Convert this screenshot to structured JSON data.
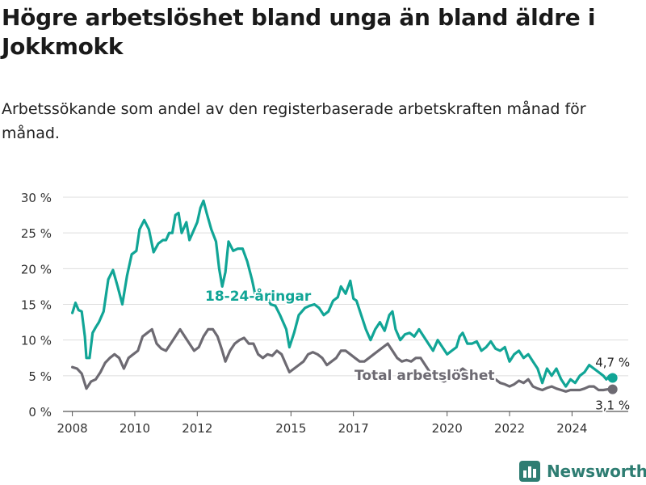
{
  "title": "Högre arbetslöshet bland unga än bland äldre i Jokkmokk",
  "subtitle": "Arbetssökande som andel av den registerbaserade arbetskraften månad för månad.",
  "brand": {
    "name": "Newsworthy",
    "icon": "newsworthy-logo-icon",
    "color": "#2e7d72"
  },
  "chart_data": {
    "type": "line",
    "title": "Högre arbetslöshet bland unga än bland äldre i Jokkmokk",
    "subtitle": "Arbetssökande som andel av den registerbaserade arbetskraften månad för månad.",
    "xlabel": "",
    "ylabel": "",
    "xlim": [
      2007.7,
      2025.8
    ],
    "ylim": [
      0,
      30
    ],
    "x_ticks": [
      2008,
      2010,
      2012,
      2015,
      2017,
      2020,
      2022,
      2024
    ],
    "y_ticks": [
      {
        "value": 0,
        "label": "0 %"
      },
      {
        "value": 5,
        "label": "5 %"
      },
      {
        "value": 10,
        "label": "10 %"
      },
      {
        "value": 15,
        "label": "15 %"
      },
      {
        "value": 20,
        "label": "20 %"
      },
      {
        "value": 25,
        "label": "25 %"
      },
      {
        "value": 30,
        "label": "30 %"
      }
    ],
    "grid": true,
    "series": [
      {
        "name": "18-24-åringar",
        "color": "#11a596",
        "end_label": "4,7 %",
        "points": [
          [
            2008.0,
            13.8
          ],
          [
            2008.1,
            15.2
          ],
          [
            2008.2,
            14.2
          ],
          [
            2008.3,
            14.0
          ],
          [
            2008.4,
            10.5
          ],
          [
            2008.45,
            7.5
          ],
          [
            2008.55,
            7.5
          ],
          [
            2008.65,
            11.0
          ],
          [
            2008.75,
            11.8
          ],
          [
            2008.85,
            12.5
          ],
          [
            2009.0,
            14.0
          ],
          [
            2009.15,
            18.5
          ],
          [
            2009.3,
            19.8
          ],
          [
            2009.45,
            17.5
          ],
          [
            2009.6,
            15.0
          ],
          [
            2009.75,
            19.0
          ],
          [
            2009.9,
            22.0
          ],
          [
            2010.05,
            22.5
          ],
          [
            2010.15,
            25.5
          ],
          [
            2010.3,
            26.8
          ],
          [
            2010.45,
            25.5
          ],
          [
            2010.6,
            22.3
          ],
          [
            2010.75,
            23.5
          ],
          [
            2010.9,
            24.0
          ],
          [
            2011.0,
            24.0
          ],
          [
            2011.1,
            25.0
          ],
          [
            2011.2,
            25.0
          ],
          [
            2011.3,
            27.5
          ],
          [
            2011.4,
            27.8
          ],
          [
            2011.5,
            25.0
          ],
          [
            2011.65,
            26.5
          ],
          [
            2011.75,
            24.0
          ],
          [
            2011.9,
            25.5
          ],
          [
            2012.0,
            26.5
          ],
          [
            2012.1,
            28.5
          ],
          [
            2012.2,
            29.5
          ],
          [
            2012.3,
            27.8
          ],
          [
            2012.45,
            25.5
          ],
          [
            2012.6,
            23.8
          ],
          [
            2012.7,
            20.0
          ],
          [
            2012.8,
            17.5
          ],
          [
            2012.9,
            19.5
          ],
          [
            2013.0,
            23.8
          ],
          [
            2013.15,
            22.5
          ],
          [
            2013.3,
            22.8
          ],
          [
            2013.45,
            22.8
          ],
          [
            2013.6,
            21.0
          ],
          [
            2013.75,
            18.5
          ],
          [
            2013.85,
            16.5
          ],
          [
            2013.95,
            15.5
          ],
          [
            2014.05,
            16.3
          ],
          [
            2014.2,
            16.3
          ],
          [
            2014.35,
            15.0
          ],
          [
            2014.5,
            14.8
          ],
          [
            2014.65,
            13.5
          ],
          [
            2014.85,
            11.5
          ],
          [
            2014.95,
            9.0
          ],
          [
            2015.1,
            11.0
          ],
          [
            2015.25,
            13.5
          ],
          [
            2015.45,
            14.5
          ],
          [
            2015.6,
            14.8
          ],
          [
            2015.75,
            15.0
          ],
          [
            2015.9,
            14.5
          ],
          [
            2016.05,
            13.5
          ],
          [
            2016.2,
            14.0
          ],
          [
            2016.35,
            15.5
          ],
          [
            2016.5,
            16.0
          ],
          [
            2016.6,
            17.5
          ],
          [
            2016.75,
            16.5
          ],
          [
            2016.9,
            18.3
          ],
          [
            2017.0,
            15.8
          ],
          [
            2017.1,
            15.5
          ],
          [
            2017.25,
            13.5
          ],
          [
            2017.4,
            11.5
          ],
          [
            2017.55,
            10.0
          ],
          [
            2017.7,
            11.5
          ],
          [
            2017.85,
            12.5
          ],
          [
            2018.0,
            11.3
          ],
          [
            2018.15,
            13.5
          ],
          [
            2018.25,
            14.0
          ],
          [
            2018.35,
            11.5
          ],
          [
            2018.5,
            10.0
          ],
          [
            2018.65,
            10.8
          ],
          [
            2018.8,
            11.0
          ],
          [
            2018.95,
            10.5
          ],
          [
            2019.1,
            11.5
          ],
          [
            2019.25,
            10.5
          ],
          [
            2019.4,
            9.5
          ],
          [
            2019.55,
            8.5
          ],
          [
            2019.7,
            10.0
          ],
          [
            2019.85,
            9.0
          ],
          [
            2020.0,
            8.0
          ],
          [
            2020.15,
            8.5
          ],
          [
            2020.3,
            9.0
          ],
          [
            2020.4,
            10.5
          ],
          [
            2020.5,
            11.0
          ],
          [
            2020.65,
            9.5
          ],
          [
            2020.8,
            9.5
          ],
          [
            2020.95,
            9.8
          ],
          [
            2021.1,
            8.5
          ],
          [
            2021.25,
            9.0
          ],
          [
            2021.4,
            9.8
          ],
          [
            2021.55,
            8.8
          ],
          [
            2021.7,
            8.5
          ],
          [
            2021.85,
            9.0
          ],
          [
            2022.0,
            7.0
          ],
          [
            2022.15,
            8.0
          ],
          [
            2022.3,
            8.5
          ],
          [
            2022.45,
            7.5
          ],
          [
            2022.6,
            8.0
          ],
          [
            2022.75,
            7.0
          ],
          [
            2022.9,
            6.0
          ],
          [
            2023.05,
            4.0
          ],
          [
            2023.2,
            6.0
          ],
          [
            2023.35,
            5.0
          ],
          [
            2023.5,
            6.0
          ],
          [
            2023.65,
            4.5
          ],
          [
            2023.8,
            3.5
          ],
          [
            2023.95,
            4.5
          ],
          [
            2024.1,
            4.0
          ],
          [
            2024.25,
            5.0
          ],
          [
            2024.4,
            5.5
          ],
          [
            2024.55,
            6.5
          ],
          [
            2024.7,
            6.0
          ],
          [
            2024.85,
            5.5
          ],
          [
            2025.0,
            5.0
          ],
          [
            2025.1,
            4.5
          ],
          [
            2025.2,
            5.0
          ],
          [
            2025.3,
            4.7
          ]
        ]
      },
      {
        "name": "Total arbetslöshet",
        "color": "#6d6a72",
        "end_label": "3,1 %",
        "points": [
          [
            2008.0,
            6.2
          ],
          [
            2008.15,
            6.0
          ],
          [
            2008.3,
            5.3
          ],
          [
            2008.45,
            3.2
          ],
          [
            2008.6,
            4.2
          ],
          [
            2008.75,
            4.5
          ],
          [
            2008.9,
            5.5
          ],
          [
            2009.05,
            6.8
          ],
          [
            2009.2,
            7.5
          ],
          [
            2009.35,
            8.0
          ],
          [
            2009.5,
            7.5
          ],
          [
            2009.65,
            6.0
          ],
          [
            2009.8,
            7.5
          ],
          [
            2009.95,
            8.0
          ],
          [
            2010.1,
            8.5
          ],
          [
            2010.25,
            10.5
          ],
          [
            2010.4,
            11.0
          ],
          [
            2010.55,
            11.5
          ],
          [
            2010.7,
            9.5
          ],
          [
            2010.85,
            8.8
          ],
          [
            2011.0,
            8.5
          ],
          [
            2011.15,
            9.5
          ],
          [
            2011.3,
            10.5
          ],
          [
            2011.45,
            11.5
          ],
          [
            2011.6,
            10.5
          ],
          [
            2011.75,
            9.5
          ],
          [
            2011.9,
            8.5
          ],
          [
            2012.05,
            9.0
          ],
          [
            2012.2,
            10.5
          ],
          [
            2012.35,
            11.5
          ],
          [
            2012.5,
            11.5
          ],
          [
            2012.65,
            10.5
          ],
          [
            2012.8,
            8.5
          ],
          [
            2012.9,
            7.0
          ],
          [
            2013.05,
            8.5
          ],
          [
            2013.2,
            9.5
          ],
          [
            2013.35,
            10.0
          ],
          [
            2013.5,
            10.3
          ],
          [
            2013.65,
            9.5
          ],
          [
            2013.8,
            9.5
          ],
          [
            2013.95,
            8.0
          ],
          [
            2014.1,
            7.5
          ],
          [
            2014.25,
            8.0
          ],
          [
            2014.4,
            7.8
          ],
          [
            2014.55,
            8.5
          ],
          [
            2014.7,
            8.0
          ],
          [
            2014.85,
            6.5
          ],
          [
            2014.95,
            5.5
          ],
          [
            2015.1,
            6.0
          ],
          [
            2015.25,
            6.5
          ],
          [
            2015.4,
            7.0
          ],
          [
            2015.55,
            8.0
          ],
          [
            2015.7,
            8.3
          ],
          [
            2015.85,
            8.0
          ],
          [
            2016.0,
            7.5
          ],
          [
            2016.15,
            6.5
          ],
          [
            2016.3,
            7.0
          ],
          [
            2016.45,
            7.5
          ],
          [
            2016.6,
            8.5
          ],
          [
            2016.75,
            8.5
          ],
          [
            2016.9,
            8.0
          ],
          [
            2017.05,
            7.5
          ],
          [
            2017.2,
            7.0
          ],
          [
            2017.35,
            7.0
          ],
          [
            2017.5,
            7.5
          ],
          [
            2017.65,
            8.0
          ],
          [
            2017.8,
            8.5
          ],
          [
            2017.95,
            9.0
          ],
          [
            2018.1,
            9.5
          ],
          [
            2018.25,
            8.5
          ],
          [
            2018.4,
            7.5
          ],
          [
            2018.55,
            7.0
          ],
          [
            2018.7,
            7.2
          ],
          [
            2018.85,
            7.0
          ],
          [
            2019.0,
            7.5
          ],
          [
            2019.15,
            7.5
          ],
          [
            2019.3,
            6.5
          ],
          [
            2019.45,
            5.5
          ],
          [
            2019.6,
            5.0
          ],
          [
            2019.75,
            4.5
          ],
          [
            2019.9,
            4.2
          ],
          [
            2020.05,
            4.5
          ],
          [
            2020.2,
            5.0
          ],
          [
            2020.35,
            5.5
          ],
          [
            2020.5,
            6.0
          ],
          [
            2020.65,
            5.5
          ],
          [
            2020.8,
            5.0
          ],
          [
            2020.95,
            4.8
          ],
          [
            2021.1,
            4.5
          ],
          [
            2021.25,
            4.5
          ],
          [
            2021.4,
            4.8
          ],
          [
            2021.55,
            4.5
          ],
          [
            2021.7,
            4.0
          ],
          [
            2021.85,
            3.8
          ],
          [
            2022.0,
            3.5
          ],
          [
            2022.15,
            3.8
          ],
          [
            2022.3,
            4.3
          ],
          [
            2022.45,
            4.0
          ],
          [
            2022.6,
            4.5
          ],
          [
            2022.75,
            3.5
          ],
          [
            2022.9,
            3.2
          ],
          [
            2023.05,
            3.0
          ],
          [
            2023.2,
            3.3
          ],
          [
            2023.35,
            3.5
          ],
          [
            2023.5,
            3.2
          ],
          [
            2023.65,
            3.0
          ],
          [
            2023.8,
            2.8
          ],
          [
            2023.95,
            3.0
          ],
          [
            2024.1,
            3.0
          ],
          [
            2024.25,
            3.0
          ],
          [
            2024.4,
            3.2
          ],
          [
            2024.55,
            3.5
          ],
          [
            2024.7,
            3.5
          ],
          [
            2024.85,
            3.0
          ],
          [
            2025.0,
            3.0
          ],
          [
            2025.15,
            3.1
          ],
          [
            2025.3,
            3.1
          ]
        ]
      }
    ]
  }
}
